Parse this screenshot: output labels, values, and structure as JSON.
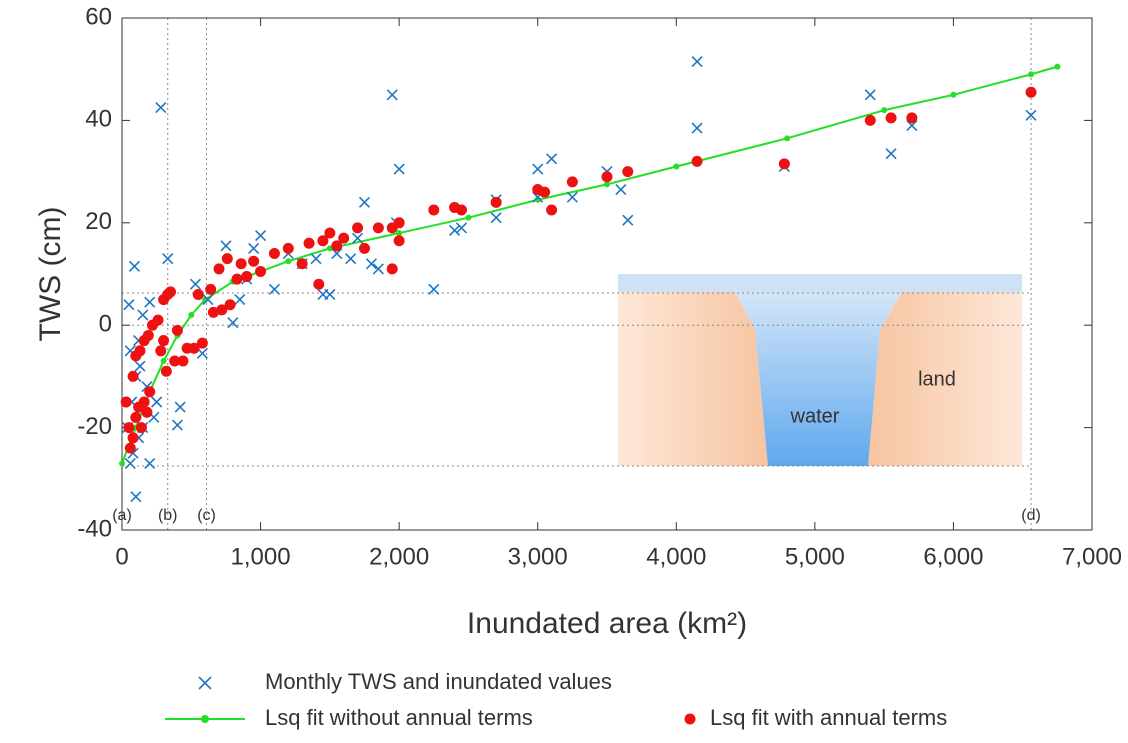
{
  "chart_data": {
    "type": "scatter",
    "y_label": "TWS (cm)",
    "x_label": "Inundated area (km²)",
    "xlim": [
      0,
      7000
    ],
    "ylim": [
      -40,
      60
    ],
    "xticks": [
      0,
      {
        "value": 1000,
        "label": "1,000"
      },
      {
        "value": 2000,
        "label": "2,000"
      },
      {
        "value": 3000,
        "label": "3,000"
      },
      {
        "value": 4000,
        "label": "4,000"
      },
      {
        "value": 5000,
        "label": "5,000"
      },
      {
        "value": 6000,
        "label": "6,000"
      },
      {
        "value": 7000,
        "label": "7,000"
      }
    ],
    "yticks": [
      -40,
      -20,
      0,
      20,
      40,
      60
    ],
    "vlines": [
      {
        "value": 0,
        "label": "(a)"
      },
      {
        "value": 330,
        "label": "(b)"
      },
      {
        "value": 610,
        "label": "(c)"
      },
      {
        "value": 6560,
        "label": "(d)"
      }
    ],
    "hlines": [
      6.3,
      0,
      -27.5
    ],
    "inset_labels": [
      "water",
      "land"
    ],
    "series": [
      {
        "name": "Monthly TWS and inundated values",
        "color": "#1f77c4",
        "marker": "x",
        "x": [
          50,
          90,
          280,
          330,
          100,
          60,
          80,
          120,
          150,
          200,
          250,
          420,
          400,
          200,
          150,
          120,
          60,
          530,
          580,
          620,
          750,
          800,
          850,
          900,
          950,
          1000,
          1100,
          1200,
          1300,
          1400,
          1450,
          1500,
          1550,
          1650,
          1700,
          1750,
          1800,
          1850,
          1950,
          2000,
          1980,
          2250,
          2400,
          2450,
          2700,
          2700,
          3000,
          3000,
          3100,
          3250,
          3500,
          3600,
          3650,
          4150,
          4150,
          4780,
          5400,
          5550,
          5700,
          6560,
          70,
          100,
          130,
          180,
          230,
          40
        ],
        "values": [
          4,
          11.5,
          42.5,
          13,
          -33.5,
          -27,
          -25,
          -22,
          -20,
          -27,
          -15,
          -16,
          -19.5,
          4.5,
          2,
          -3,
          -5,
          8,
          -5.5,
          5,
          15.5,
          0.5,
          5,
          9,
          15,
          17.5,
          7,
          14,
          12,
          13,
          6,
          6,
          14,
          13,
          17,
          24,
          12,
          11,
          45,
          30.5,
          20,
          7,
          18.5,
          19,
          24.5,
          21,
          30.5,
          25,
          32.5,
          25,
          30,
          26.5,
          20.5,
          51.5,
          38.5,
          31,
          45,
          33.5,
          39,
          41,
          -15,
          -10,
          -8,
          -12,
          -18,
          -20
        ]
      },
      {
        "name": "Lsq fit without annual terms",
        "color": "#22e022",
        "marker": "line",
        "x": [
          0,
          100,
          200,
          300,
          400,
          500,
          600,
          800,
          1000,
          1200,
          1500,
          2000,
          2500,
          3000,
          3500,
          4000,
          4800,
          5500,
          6000,
          6560,
          6750
        ],
        "values": [
          -27,
          -20,
          -13,
          -7,
          -2,
          2,
          5,
          8.5,
          10.5,
          12.5,
          15,
          18,
          21,
          24.5,
          27.5,
          31,
          36.5,
          42,
          45,
          49,
          50.5
        ]
      },
      {
        "name": "Lsq fit with annual terms",
        "color": "#ee1111",
        "marker": "dot",
        "x": [
          30,
          50,
          60,
          80,
          100,
          120,
          140,
          160,
          180,
          200,
          80,
          100,
          130,
          160,
          190,
          220,
          260,
          300,
          330,
          350,
          280,
          320,
          380,
          440,
          300,
          400,
          470,
          520,
          580,
          550,
          640,
          660,
          700,
          720,
          760,
          780,
          830,
          860,
          900,
          950,
          1000,
          1100,
          1200,
          1300,
          1350,
          1420,
          1450,
          1500,
          1550,
          1600,
          1700,
          1750,
          1850,
          1950,
          1950,
          2000,
          2000,
          2250,
          2400,
          2450,
          2700,
          3000,
          3050,
          3100,
          3250,
          3500,
          3650,
          4150,
          4780,
          5400,
          5550,
          5700,
          6560
        ],
        "values": [
          -15,
          -20,
          -24,
          -22,
          -18,
          -16,
          -20,
          -15,
          -17,
          -13,
          -10,
          -6,
          -5,
          -3,
          -2,
          0,
          1,
          5,
          6,
          6.5,
          -5,
          -9,
          -7,
          -7,
          -3,
          -1,
          -4.5,
          -4.5,
          -3.5,
          6,
          7,
          2.5,
          11,
          3,
          13,
          4,
          9,
          12,
          9.5,
          12.5,
          10.5,
          14,
          15,
          12,
          16,
          8,
          16.5,
          18,
          15.5,
          17,
          19,
          15,
          19,
          11,
          19,
          16.5,
          20,
          22.5,
          23,
          22.5,
          24,
          26.5,
          26,
          22.5,
          28,
          29,
          30,
          32,
          31.5,
          40,
          40.5,
          40.5,
          45.5
        ]
      }
    ]
  }
}
